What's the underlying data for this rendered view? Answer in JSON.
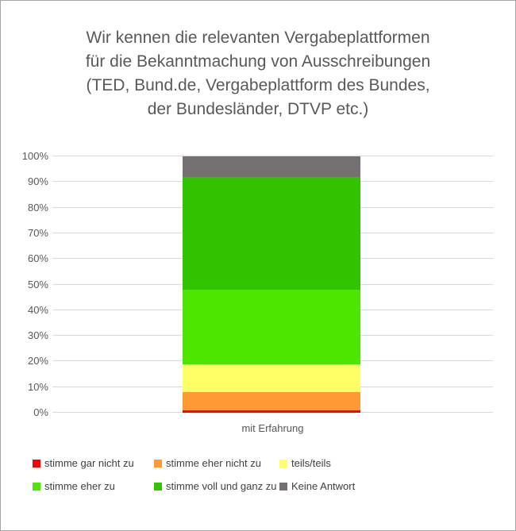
{
  "title_lines": [
    "Wir kennen die relevanten Vergabeplattformen",
    "für die Bekanntmachung von Ausschreibungen",
    "(TED, Bund.de, Vergabeplattform des Bundes,",
    "der Bundesländer, DTVP etc.)"
  ],
  "chart_data": {
    "type": "bar",
    "stacked": true,
    "units": "percent",
    "title": "Wir kennen die relevanten Vergabeplattformen für die Bekanntmachung von Ausschreibungen (TED, Bund.de, Vergabeplattform des Bundes, der Bundesländer, DTVP etc.)",
    "categories": [
      "mit Erfahrung"
    ],
    "series": [
      {
        "name": "stimme gar nicht zu",
        "color": "#FF0000",
        "values": [
          1
        ]
      },
      {
        "name": "stimme eher nicht zu",
        "color": "#FF9933",
        "values": [
          7
        ]
      },
      {
        "name": "teils/teils",
        "color": "#FFFF66",
        "values": [
          11
        ]
      },
      {
        "name": "stimme eher zu",
        "color": "#4DE600",
        "values": [
          29
        ]
      },
      {
        "name": "stimme voll und ganz zu",
        "color": "#33C400",
        "values": [
          44
        ]
      },
      {
        "name": "Keine Antwort",
        "color": "#757171",
        "values": [
          8
        ]
      }
    ],
    "ylim": [
      0,
      100
    ],
    "yticks": [
      "0%",
      "10%",
      "20%",
      "30%",
      "40%",
      "50%",
      "60%",
      "70%",
      "80%",
      "90%",
      "100%"
    ],
    "grid": true,
    "legend_position": "bottom"
  },
  "colors": {
    "background": "#FFFFFF",
    "border": "#A6A6A6",
    "gridline": "#D9D9D9",
    "axis_text": "#595959",
    "title_text": "#595959",
    "legend_text": "#404040"
  }
}
